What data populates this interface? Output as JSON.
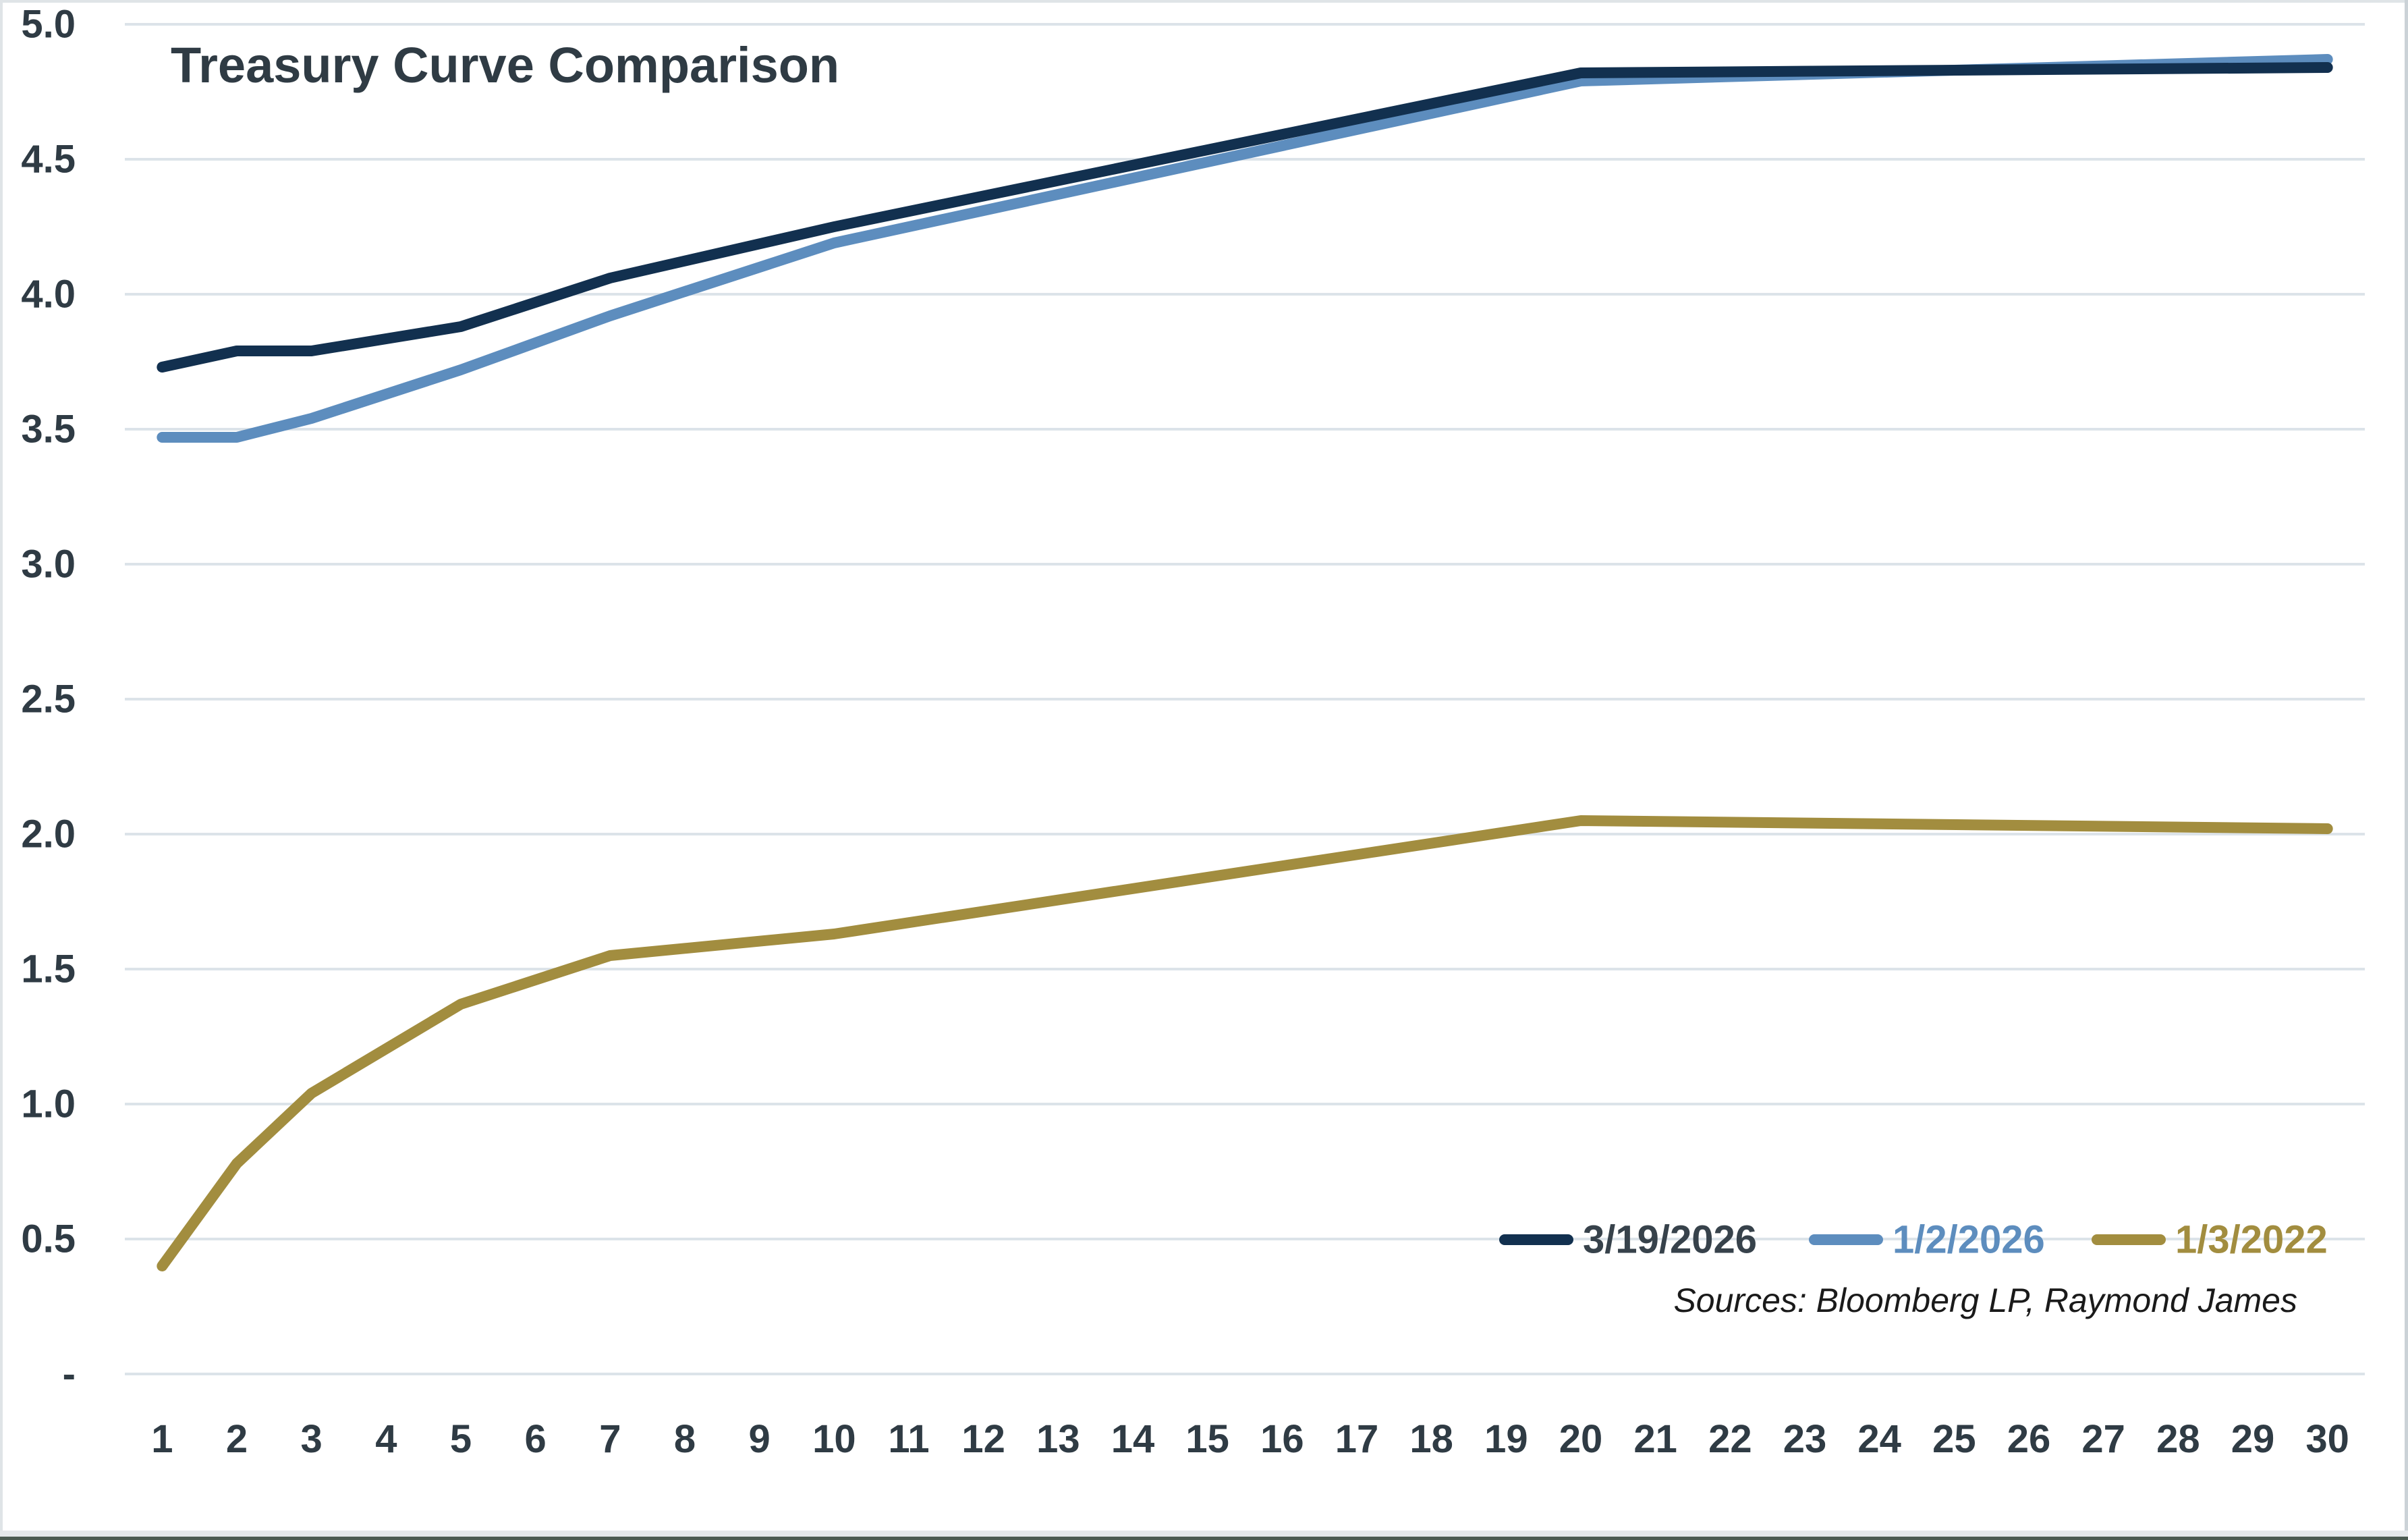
{
  "frame": {
    "background": "#ffffff",
    "border_top_color": "#dfe4e7",
    "border_left_color": "#dfe4e7",
    "border_right_color": "#cbd2d7",
    "bottom_strip_color": "#e4e8ea",
    "bottom_edge_color": "#4b5b51",
    "gridline_color": "#dce3e9",
    "text_color": "#2f3b44",
    "sources_color": "#1a1a1a"
  },
  "chart_data": {
    "type": "line",
    "title": "Treasury Curve Comparison",
    "sources_note": "Sources: Bloomberg LP, Raymond James",
    "grid": "horizontal",
    "legend_position": "inside-bottom-right",
    "x_axis": {
      "tick_labels": [
        "1",
        "2",
        "3",
        "4",
        "5",
        "6",
        "7",
        "8",
        "9",
        "10",
        "11",
        "12",
        "13",
        "14",
        "15",
        "16",
        "17",
        "18",
        "19",
        "20",
        "21",
        "22",
        "23",
        "24",
        "25",
        "26",
        "27",
        "28",
        "29",
        "30"
      ],
      "min": 1,
      "max": 30
    },
    "y_axis": {
      "tick_labels": [
        "5.0",
        "4.5",
        "4.0",
        "3.5",
        "3.0",
        "2.5",
        "2.0",
        "1.5",
        "1.0",
        "0.5",
        "-"
      ],
      "min": 0,
      "max": 5,
      "step": 0.5
    },
    "x": [
      1,
      2,
      3,
      5,
      7,
      10,
      20,
      30
    ],
    "series": [
      {
        "name": "1/3/2022",
        "color": "#a28d3f",
        "label_color": "#a28d3f",
        "values": [
          0.4,
          0.78,
          1.04,
          1.37,
          1.55,
          1.63,
          2.05,
          2.02
        ]
      },
      {
        "name": "1/2/2026",
        "color": "#5d8dbe",
        "label_color": "#5d8dbe",
        "values": [
          3.47,
          3.47,
          3.54,
          3.72,
          3.92,
          4.19,
          4.79,
          4.87
        ]
      },
      {
        "name": "3/19/2026",
        "color": "#12304f",
        "label_color": "#37424b",
        "values": [
          3.73,
          3.79,
          3.79,
          3.88,
          4.06,
          4.25,
          4.82,
          4.84
        ]
      }
    ],
    "legend_order": [
      "3/19/2026",
      "1/2/2026",
      "1/3/2022"
    ]
  }
}
